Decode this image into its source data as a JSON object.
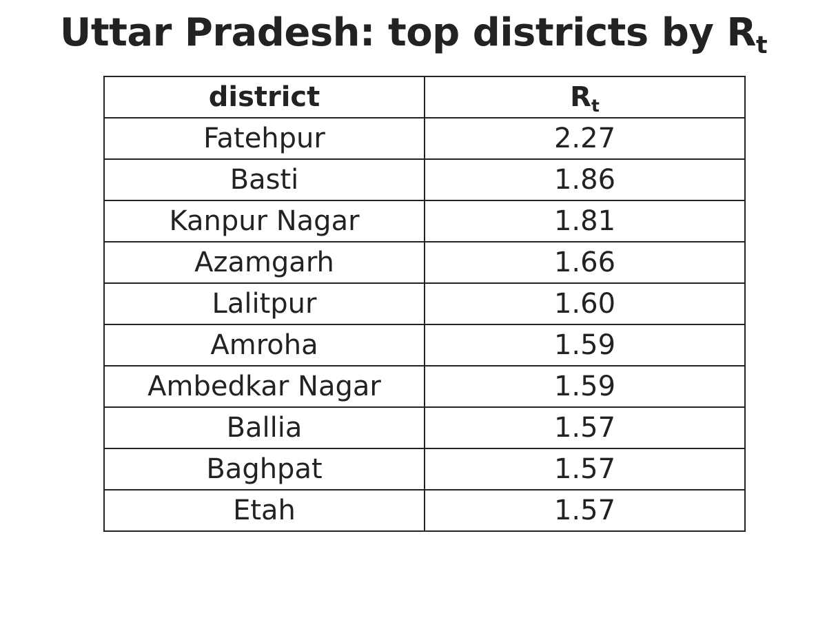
{
  "chart_data": {
    "type": "table",
    "title_main": "Uttar Pradesh: top districts by R",
    "title_sub": "t",
    "columns": [
      {
        "main": "district",
        "sub": ""
      },
      {
        "main": "R",
        "sub": "t"
      }
    ],
    "rows": [
      {
        "district": "Fatehpur",
        "rt": "2.27"
      },
      {
        "district": "Basti",
        "rt": "1.86"
      },
      {
        "district": "Kanpur Nagar",
        "rt": "1.81"
      },
      {
        "district": "Azamgarh",
        "rt": "1.66"
      },
      {
        "district": "Lalitpur",
        "rt": "1.60"
      },
      {
        "district": "Amroha",
        "rt": "1.59"
      },
      {
        "district": "Ambedkar Nagar",
        "rt": "1.59"
      },
      {
        "district": "Ballia",
        "rt": "1.57"
      },
      {
        "district": "Baghpat",
        "rt": "1.57"
      },
      {
        "district": "Etah",
        "rt": "1.57"
      }
    ]
  },
  "colors": {
    "text": "#222222",
    "border": "#222222",
    "background": "#ffffff"
  }
}
